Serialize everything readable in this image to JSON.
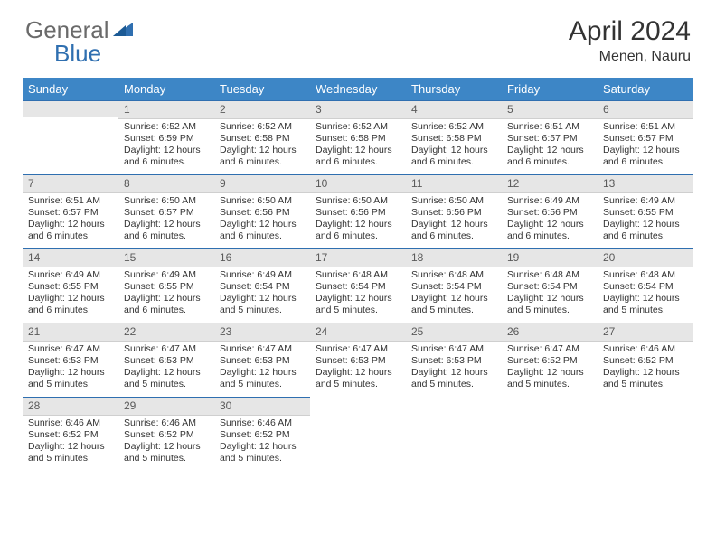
{
  "brand": {
    "general": "General",
    "blue": "Blue"
  },
  "title": "April 2024",
  "location": "Menen, Nauru",
  "colors": {
    "header_bg": "#3d86c6",
    "header_text": "#ffffff",
    "daynum_bg": "#e6e6e6",
    "daynum_border_top": "#2f6fb0",
    "logo_gray": "#6a6a6a",
    "logo_blue": "#2f6fb0",
    "body_text": "#333333"
  },
  "weekdays": [
    "Sunday",
    "Monday",
    "Tuesday",
    "Wednesday",
    "Thursday",
    "Friday",
    "Saturday"
  ],
  "start_offset": 1,
  "days": [
    {
      "n": 1,
      "sr": "6:52 AM",
      "ss": "6:59 PM",
      "dl": "12 hours and 6 minutes."
    },
    {
      "n": 2,
      "sr": "6:52 AM",
      "ss": "6:58 PM",
      "dl": "12 hours and 6 minutes."
    },
    {
      "n": 3,
      "sr": "6:52 AM",
      "ss": "6:58 PM",
      "dl": "12 hours and 6 minutes."
    },
    {
      "n": 4,
      "sr": "6:52 AM",
      "ss": "6:58 PM",
      "dl": "12 hours and 6 minutes."
    },
    {
      "n": 5,
      "sr": "6:51 AM",
      "ss": "6:57 PM",
      "dl": "12 hours and 6 minutes."
    },
    {
      "n": 6,
      "sr": "6:51 AM",
      "ss": "6:57 PM",
      "dl": "12 hours and 6 minutes."
    },
    {
      "n": 7,
      "sr": "6:51 AM",
      "ss": "6:57 PM",
      "dl": "12 hours and 6 minutes."
    },
    {
      "n": 8,
      "sr": "6:50 AM",
      "ss": "6:57 PM",
      "dl": "12 hours and 6 minutes."
    },
    {
      "n": 9,
      "sr": "6:50 AM",
      "ss": "6:56 PM",
      "dl": "12 hours and 6 minutes."
    },
    {
      "n": 10,
      "sr": "6:50 AM",
      "ss": "6:56 PM",
      "dl": "12 hours and 6 minutes."
    },
    {
      "n": 11,
      "sr": "6:50 AM",
      "ss": "6:56 PM",
      "dl": "12 hours and 6 minutes."
    },
    {
      "n": 12,
      "sr": "6:49 AM",
      "ss": "6:56 PM",
      "dl": "12 hours and 6 minutes."
    },
    {
      "n": 13,
      "sr": "6:49 AM",
      "ss": "6:55 PM",
      "dl": "12 hours and 6 minutes."
    },
    {
      "n": 14,
      "sr": "6:49 AM",
      "ss": "6:55 PM",
      "dl": "12 hours and 6 minutes."
    },
    {
      "n": 15,
      "sr": "6:49 AM",
      "ss": "6:55 PM",
      "dl": "12 hours and 6 minutes."
    },
    {
      "n": 16,
      "sr": "6:49 AM",
      "ss": "6:54 PM",
      "dl": "12 hours and 5 minutes."
    },
    {
      "n": 17,
      "sr": "6:48 AM",
      "ss": "6:54 PM",
      "dl": "12 hours and 5 minutes."
    },
    {
      "n": 18,
      "sr": "6:48 AM",
      "ss": "6:54 PM",
      "dl": "12 hours and 5 minutes."
    },
    {
      "n": 19,
      "sr": "6:48 AM",
      "ss": "6:54 PM",
      "dl": "12 hours and 5 minutes."
    },
    {
      "n": 20,
      "sr": "6:48 AM",
      "ss": "6:54 PM",
      "dl": "12 hours and 5 minutes."
    },
    {
      "n": 21,
      "sr": "6:47 AM",
      "ss": "6:53 PM",
      "dl": "12 hours and 5 minutes."
    },
    {
      "n": 22,
      "sr": "6:47 AM",
      "ss": "6:53 PM",
      "dl": "12 hours and 5 minutes."
    },
    {
      "n": 23,
      "sr": "6:47 AM",
      "ss": "6:53 PM",
      "dl": "12 hours and 5 minutes."
    },
    {
      "n": 24,
      "sr": "6:47 AM",
      "ss": "6:53 PM",
      "dl": "12 hours and 5 minutes."
    },
    {
      "n": 25,
      "sr": "6:47 AM",
      "ss": "6:53 PM",
      "dl": "12 hours and 5 minutes."
    },
    {
      "n": 26,
      "sr": "6:47 AM",
      "ss": "6:52 PM",
      "dl": "12 hours and 5 minutes."
    },
    {
      "n": 27,
      "sr": "6:46 AM",
      "ss": "6:52 PM",
      "dl": "12 hours and 5 minutes."
    },
    {
      "n": 28,
      "sr": "6:46 AM",
      "ss": "6:52 PM",
      "dl": "12 hours and 5 minutes."
    },
    {
      "n": 29,
      "sr": "6:46 AM",
      "ss": "6:52 PM",
      "dl": "12 hours and 5 minutes."
    },
    {
      "n": 30,
      "sr": "6:46 AM",
      "ss": "6:52 PM",
      "dl": "12 hours and 5 minutes."
    }
  ],
  "labels": {
    "sunrise": "Sunrise:",
    "sunset": "Sunset:",
    "daylight": "Daylight:"
  }
}
